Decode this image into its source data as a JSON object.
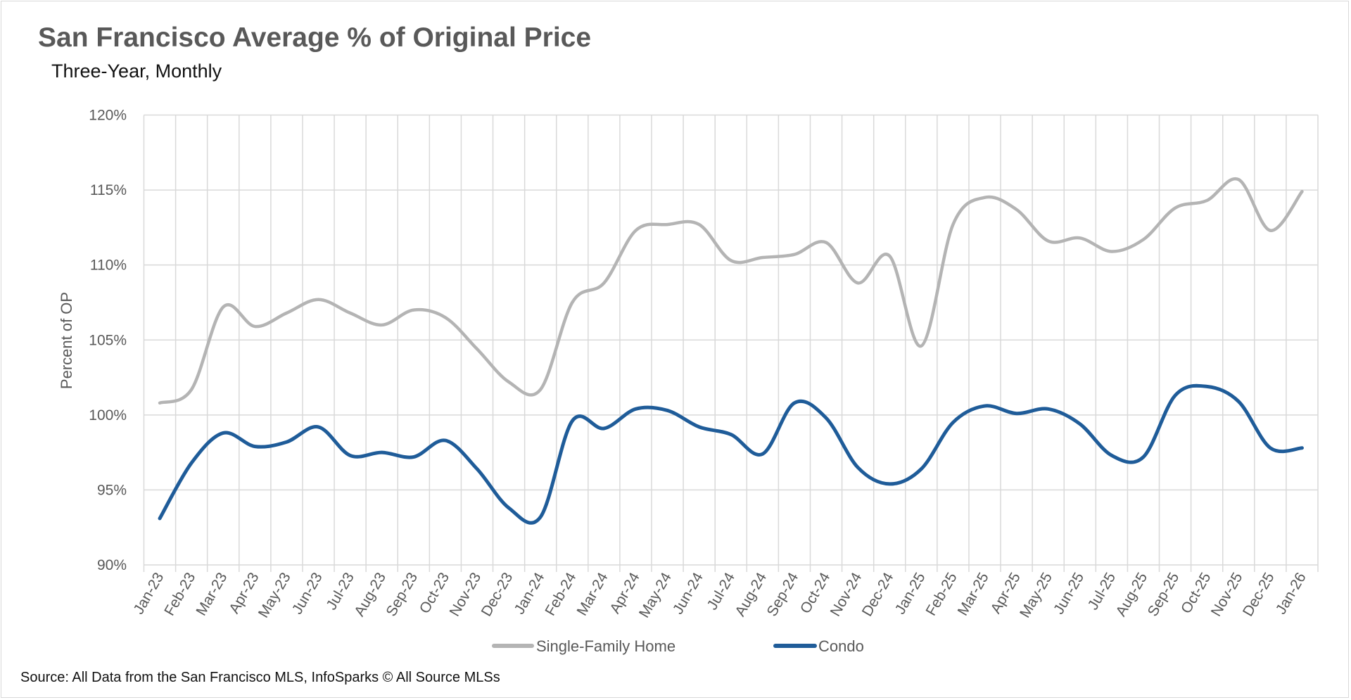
{
  "chart_data": {
    "type": "line",
    "title": "San Francisco Average % of Original Price",
    "subtitle": "Three-Year, Monthly",
    "xlabel": "",
    "ylabel": "Percent of OP",
    "ylim": [
      90,
      120
    ],
    "yticks": [
      "90%",
      "95%",
      "100%",
      "105%",
      "110%",
      "115%",
      "120%"
    ],
    "ytick_values": [
      90,
      95,
      100,
      105,
      110,
      115,
      120
    ],
    "grid": true,
    "smooth": true,
    "legend_position": "bottom",
    "categories": [
      "Jan-23",
      "Feb-23",
      "Mar-23",
      "Apr-23",
      "May-23",
      "Jun-23",
      "Jul-23",
      "Aug-23",
      "Sep-23",
      "Oct-23",
      "Nov-23",
      "Dec-23",
      "Jan-24",
      "Feb-24",
      "Mar-24",
      "Apr-24",
      "May-24",
      "Jun-24",
      "Jul-24",
      "Aug-24",
      "Sep-24",
      "Oct-24",
      "Nov-24",
      "Dec-24",
      "Jan-25",
      "Feb-25",
      "Mar-25",
      "Apr-25",
      "May-25",
      "Jun-25",
      "Jul-25",
      "Aug-25",
      "Sep-25",
      "Oct-25",
      "Nov-25",
      "Dec-25",
      "Jan-26"
    ],
    "series": [
      {
        "name": "Single-Family Home",
        "color": "#b4b4b4",
        "values": [
          100.8,
          101.7,
          107.2,
          105.9,
          106.8,
          107.7,
          106.8,
          106.0,
          107.0,
          106.5,
          104.4,
          102.2,
          101.7,
          107.5,
          108.8,
          112.3,
          112.7,
          112.7,
          110.3,
          110.5,
          110.7,
          111.5,
          108.8,
          110.6,
          104.6,
          112.7,
          114.5,
          113.7,
          111.6,
          111.8,
          110.9,
          111.7,
          113.8,
          114.3,
          115.7,
          112.3,
          114.9
        ]
      },
      {
        "name": "Condo",
        "color": "#1f5c99",
        "values": [
          93.1,
          96.8,
          98.8,
          97.9,
          98.2,
          99.2,
          97.3,
          97.5,
          97.2,
          98.3,
          96.4,
          93.8,
          93.2,
          99.6,
          99.1,
          100.4,
          100.3,
          99.2,
          98.7,
          97.4,
          100.8,
          99.8,
          96.5,
          95.4,
          96.4,
          99.5,
          100.6,
          100.1,
          100.4,
          99.4,
          97.3,
          97.2,
          101.3,
          101.9,
          100.9,
          97.8,
          97.8
        ]
      }
    ],
    "source": "Source: All Data from the San Francisco MLS, InfoSparks © All Source MLSs",
    "gridline_color": "#d9d9d9"
  }
}
